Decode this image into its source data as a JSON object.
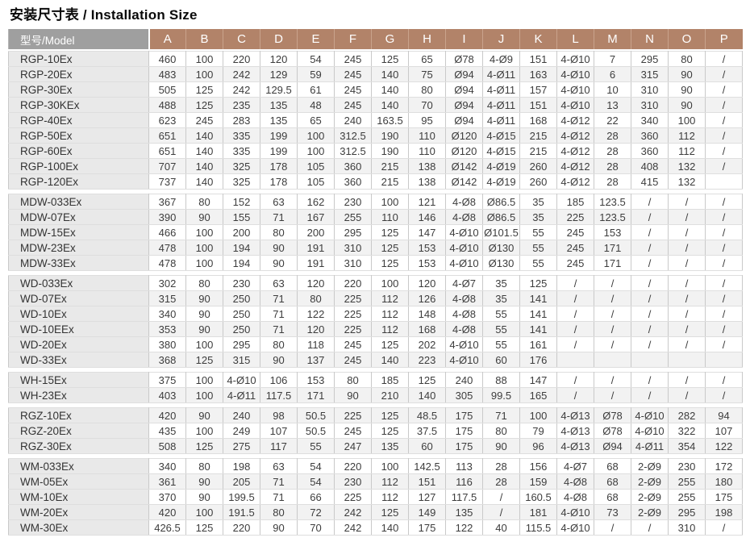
{
  "title": "安装尺寸表 / Installation Size",
  "colors": {
    "header_letters_bg": "#b28369",
    "header_model_bg": "#9f9f9f",
    "header_text": "#ffffff",
    "model_cell_bg": "#e9e9e9",
    "stripe_bg": "#f2f2f2",
    "grid_line": "#c9c9c9",
    "body_text": "#3d3d3d"
  },
  "table": {
    "model_header": "型号/Model",
    "columns": [
      "A",
      "B",
      "C",
      "D",
      "E",
      "F",
      "G",
      "H",
      "I",
      "J",
      "K",
      "L",
      "M",
      "N",
      "O",
      "P"
    ],
    "groups": [
      {
        "rows": [
          {
            "model": "RGP-10Ex",
            "values": [
              "460",
              "100",
              "220",
              "120",
              "54",
              "245",
              "125",
              "65",
              "Ø78",
              "4-Ø9",
              "151",
              "4-Ø10",
              "7",
              "295",
              "80",
              "/"
            ]
          },
          {
            "model": "RGP-20Ex",
            "values": [
              "483",
              "100",
              "242",
              "129",
              "59",
              "245",
              "140",
              "75",
              "Ø94",
              "4-Ø11",
              "163",
              "4-Ø10",
              "6",
              "315",
              "90",
              "/"
            ]
          },
          {
            "model": "RGP-30Ex",
            "values": [
              "505",
              "125",
              "242",
              "129.5",
              "61",
              "245",
              "140",
              "80",
              "Ø94",
              "4-Ø11",
              "157",
              "4-Ø10",
              "10",
              "310",
              "90",
              "/"
            ]
          },
          {
            "model": "RGP-30KEx",
            "values": [
              "488",
              "125",
              "235",
              "135",
              "48",
              "245",
              "140",
              "70",
              "Ø94",
              "4-Ø11",
              "151",
              "4-Ø10",
              "13",
              "310",
              "90",
              "/"
            ]
          },
          {
            "model": "RGP-40Ex",
            "values": [
              "623",
              "245",
              "283",
              "135",
              "65",
              "240",
              "163.5",
              "95",
              "Ø94",
              "4-Ø11",
              "168",
              "4-Ø12",
              "22",
              "340",
              "100",
              "/"
            ]
          },
          {
            "model": "RGP-50Ex",
            "values": [
              "651",
              "140",
              "335",
              "199",
              "100",
              "312.5",
              "190",
              "110",
              "Ø120",
              "4-Ø15",
              "215",
              "4-Ø12",
              "28",
              "360",
              "112",
              "/"
            ]
          },
          {
            "model": "RGP-60Ex",
            "values": [
              "651",
              "140",
              "335",
              "199",
              "100",
              "312.5",
              "190",
              "110",
              "Ø120",
              "4-Ø15",
              "215",
              "4-Ø12",
              "28",
              "360",
              "112",
              "/"
            ]
          },
          {
            "model": "RGP-100Ex",
            "values": [
              "707",
              "140",
              "325",
              "178",
              "105",
              "360",
              "215",
              "138",
              "Ø142",
              "4-Ø19",
              "260",
              "4-Ø12",
              "28",
              "408",
              "132",
              "/"
            ]
          },
          {
            "model": "RGP-120Ex",
            "values": [
              "737",
              "140",
              "325",
              "178",
              "105",
              "360",
              "215",
              "138",
              "Ø142",
              "4-Ø19",
              "260",
              "4-Ø12",
              "28",
              "415",
              "132",
              ""
            ]
          }
        ]
      },
      {
        "rows": [
          {
            "model": "MDW-033Ex",
            "values": [
              "367",
              "80",
              "152",
              "63",
              "162",
              "230",
              "100",
              "121",
              "4-Ø8",
              "Ø86.5",
              "35",
              "185",
              "123.5",
              "/",
              "/",
              "/"
            ]
          },
          {
            "model": "MDW-07Ex",
            "values": [
              "390",
              "90",
              "155",
              "71",
              "167",
              "255",
              "110",
              "146",
              "4-Ø8",
              "Ø86.5",
              "35",
              "225",
              "123.5",
              "/",
              "/",
              "/"
            ]
          },
          {
            "model": "MDW-15Ex",
            "values": [
              "466",
              "100",
              "200",
              "80",
              "200",
              "295",
              "125",
              "147",
              "4-Ø10",
              "Ø101.5",
              "55",
              "245",
              "153",
              "/",
              "/",
              "/"
            ]
          },
          {
            "model": "MDW-23Ex",
            "values": [
              "478",
              "100",
              "194",
              "90",
              "191",
              "310",
              "125",
              "153",
              "4-Ø10",
              "Ø130",
              "55",
              "245",
              "171",
              "/",
              "/",
              "/"
            ]
          },
          {
            "model": "MDW-33Ex",
            "values": [
              "478",
              "100",
              "194",
              "90",
              "191",
              "310",
              "125",
              "153",
              "4-Ø10",
              "Ø130",
              "55",
              "245",
              "171",
              "/",
              "/",
              "/"
            ]
          }
        ]
      },
      {
        "rows": [
          {
            "model": "WD-033Ex",
            "values": [
              "302",
              "80",
              "230",
              "63",
              "120",
              "220",
              "100",
              "120",
              "4-Ø7",
              "35",
              "125",
              "/",
              "/",
              "/",
              "/",
              "/"
            ]
          },
          {
            "model": "WD-07Ex",
            "values": [
              "315",
              "90",
              "250",
              "71",
              "80",
              "225",
              "112",
              "126",
              "4-Ø8",
              "35",
              "141",
              "/",
              "/",
              "/",
              "/",
              "/"
            ]
          },
          {
            "model": "WD-10Ex",
            "values": [
              "340",
              "90",
              "250",
              "71",
              "122",
              "225",
              "112",
              "148",
              "4-Ø8",
              "55",
              "141",
              "/",
              "/",
              "/",
              "/",
              "/"
            ]
          },
          {
            "model": "WD-10EEx",
            "values": [
              "353",
              "90",
              "250",
              "71",
              "120",
              "225",
              "112",
              "168",
              "4-Ø8",
              "55",
              "141",
              "/",
              "/",
              "/",
              "/",
              "/"
            ]
          },
          {
            "model": "WD-20Ex",
            "values": [
              "380",
              "100",
              "295",
              "80",
              "118",
              "245",
              "125",
              "202",
              "4-Ø10",
              "55",
              "161",
              "/",
              "/",
              "/",
              "/",
              "/"
            ]
          },
          {
            "model": "WD-33Ex",
            "values": [
              "368",
              "125",
              "315",
              "90",
              "137",
              "245",
              "140",
              "223",
              "4-Ø10",
              "60",
              "176",
              "",
              "",
              "",
              "",
              ""
            ]
          }
        ]
      },
      {
        "rows": [
          {
            "model": "WH-15Ex",
            "values": [
              "375",
              "100",
              "4-Ø10",
              "106",
              "153",
              "80",
              "185",
              "125",
              "240",
              "88",
              "147",
              "/",
              "/",
              "/",
              "/",
              "/"
            ]
          },
          {
            "model": "WH-23Ex",
            "values": [
              "403",
              "100",
              "4-Ø11",
              "117.5",
              "171",
              "90",
              "210",
              "140",
              "305",
              "99.5",
              "165",
              "/",
              "/",
              "/",
              "/",
              "/"
            ]
          }
        ]
      },
      {
        "rows": [
          {
            "model": "RGZ-10Ex",
            "values": [
              "420",
              "90",
              "240",
              "98",
              "50.5",
              "225",
              "125",
              "48.5",
              "175",
              "71",
              "100",
              "4-Ø13",
              "Ø78",
              "4-Ø10",
              "282",
              "94"
            ]
          },
          {
            "model": "RGZ-20Ex",
            "values": [
              "435",
              "100",
              "249",
              "107",
              "50.5",
              "245",
              "125",
              "37.5",
              "175",
              "80",
              "79",
              "4-Ø13",
              "Ø78",
              "4-Ø10",
              "322",
              "107"
            ]
          },
          {
            "model": "RGZ-30Ex",
            "values": [
              "508",
              "125",
              "275",
              "117",
              "55",
              "247",
              "135",
              "60",
              "175",
              "90",
              "96",
              "4-Ø13",
              "Ø94",
              "4-Ø11",
              "354",
              "122"
            ]
          }
        ]
      },
      {
        "rows": [
          {
            "model": "WM-033Ex",
            "values": [
              "340",
              "80",
              "198",
              "63",
              "54",
              "220",
              "100",
              "142.5",
              "113",
              "28",
              "156",
              "4-Ø7",
              "68",
              "2-Ø9",
              "230",
              "172"
            ]
          },
          {
            "model": "WM-05Ex",
            "values": [
              "361",
              "90",
              "205",
              "71",
              "54",
              "230",
              "112",
              "151",
              "116",
              "28",
              "159",
              "4-Ø8",
              "68",
              "2-Ø9",
              "255",
              "180"
            ]
          },
          {
            "model": "WM-10Ex",
            "values": [
              "370",
              "90",
              "199.5",
              "71",
              "66",
              "225",
              "112",
              "127",
              "117.5",
              "/",
              "160.5",
              "4-Ø8",
              "68",
              "2-Ø9",
              "255",
              "175"
            ]
          },
          {
            "model": "WM-20Ex",
            "values": [
              "420",
              "100",
              "191.5",
              "80",
              "72",
              "242",
              "125",
              "149",
              "135",
              "/",
              "181",
              "4-Ø10",
              "73",
              "2-Ø9",
              "295",
              "198"
            ]
          },
          {
            "model": "WM-30Ex",
            "values": [
              "426.5",
              "125",
              "220",
              "90",
              "70",
              "242",
              "140",
              "175",
              "122",
              "40",
              "115.5",
              "4-Ø10",
              "/",
              "/",
              "310",
              "/"
            ]
          }
        ]
      }
    ]
  }
}
